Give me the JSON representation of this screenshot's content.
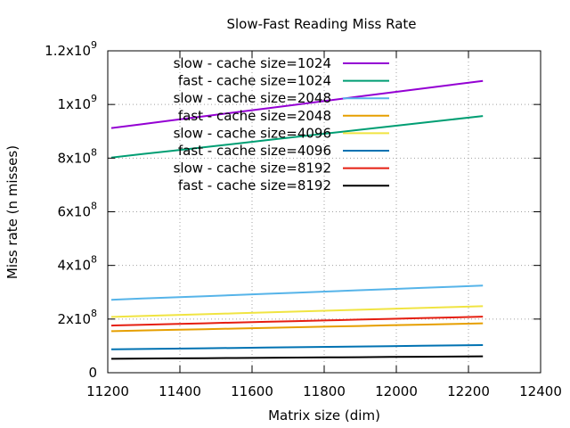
{
  "chart_data": {
    "type": "line",
    "title": "Slow-Fast Reading Miss Rate",
    "xlabel": "Matrix size (dim)",
    "ylabel": "Miss rate (n misses)",
    "xlim": [
      11200,
      12400
    ],
    "ylim": [
      0,
      1200000000
    ],
    "grid": true,
    "legend_position": "top-left",
    "x_ticks": [
      "11200",
      "11400",
      "11600",
      "11800",
      "12000",
      "12200",
      "12400"
    ],
    "y_ticks": [
      {
        "value": 0,
        "mantissa": "0",
        "exp": ""
      },
      {
        "value": 200000000,
        "mantissa": "2x10",
        "exp": "8"
      },
      {
        "value": 400000000,
        "mantissa": "4x10",
        "exp": "8"
      },
      {
        "value": 600000000,
        "mantissa": "6x10",
        "exp": "8"
      },
      {
        "value": 800000000,
        "mantissa": "8x10",
        "exp": "8"
      },
      {
        "value": 1000000000,
        "mantissa": "1x10",
        "exp": "9"
      },
      {
        "value": 1200000000,
        "mantissa": "1.2x10",
        "exp": "9"
      }
    ],
    "series": [
      {
        "name": "slow - cache size=1024",
        "color": "#9400d3",
        "x": [
          11210,
          12240
        ],
        "y": [
          912000000,
          1088000000
        ]
      },
      {
        "name": "fast - cache size=1024",
        "color": "#009e73",
        "x": [
          11210,
          12240
        ],
        "y": [
          802000000,
          957000000
        ]
      },
      {
        "name": "slow - cache size=2048",
        "color": "#56b4e9",
        "x": [
          11210,
          12240
        ],
        "y": [
          272000000,
          325000000
        ]
      },
      {
        "name": "fast - cache size=2048",
        "color": "#e69f00",
        "x": [
          11210,
          12240
        ],
        "y": [
          155000000,
          184000000
        ]
      },
      {
        "name": "slow - cache size=4096",
        "color": "#f0e442",
        "x": [
          11210,
          12240
        ],
        "y": [
          208000000,
          248000000
        ]
      },
      {
        "name": "fast - cache size=4096",
        "color": "#0072b2",
        "x": [
          11210,
          12240
        ],
        "y": [
          87000000,
          103000000
        ]
      },
      {
        "name": "slow - cache size=8192",
        "color": "#e51e10",
        "x": [
          11210,
          12240
        ],
        "y": [
          176000000,
          209000000
        ]
      },
      {
        "name": "fast - cache size=8192",
        "color": "#000000",
        "x": [
          11210,
          12240
        ],
        "y": [
          52000000,
          61000000
        ]
      }
    ]
  }
}
